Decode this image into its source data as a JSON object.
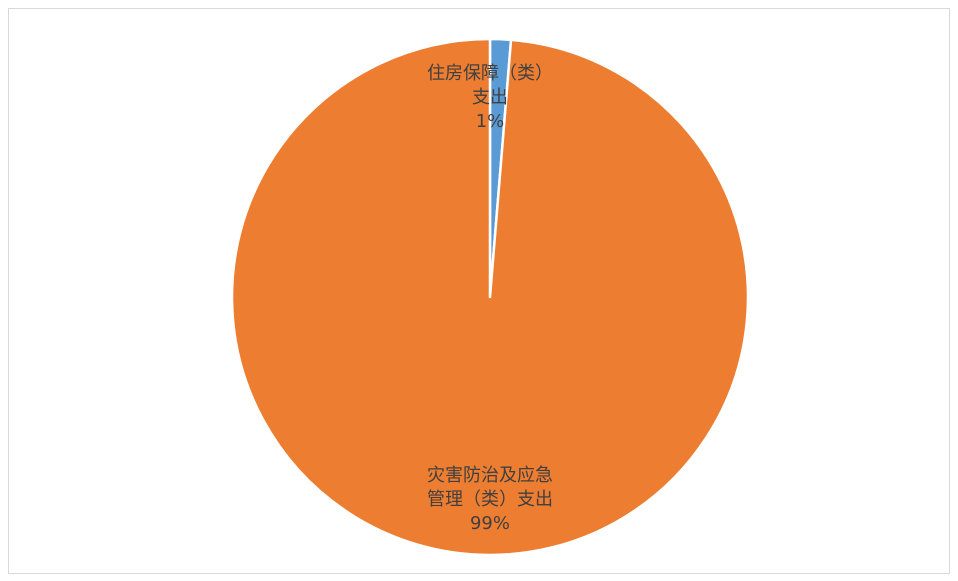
{
  "chart_data": {
    "type": "pie",
    "slices": [
      {
        "name": "住房保障（类）支出",
        "label_lines": [
          "住房保障（类）",
          "支出"
        ],
        "percent_label": "1%",
        "value": 1.3,
        "color": "#5B9BD5"
      },
      {
        "name": "灾害防治及应急管理（类）支出",
        "label_lines": [
          "灾害防治及应急",
          "管理（类）支出"
        ],
        "percent_label": "99%",
        "value": 98.7,
        "color": "#ED7D31"
      }
    ],
    "start": "top",
    "direction": "clockwise",
    "legend": "none",
    "title": ""
  }
}
